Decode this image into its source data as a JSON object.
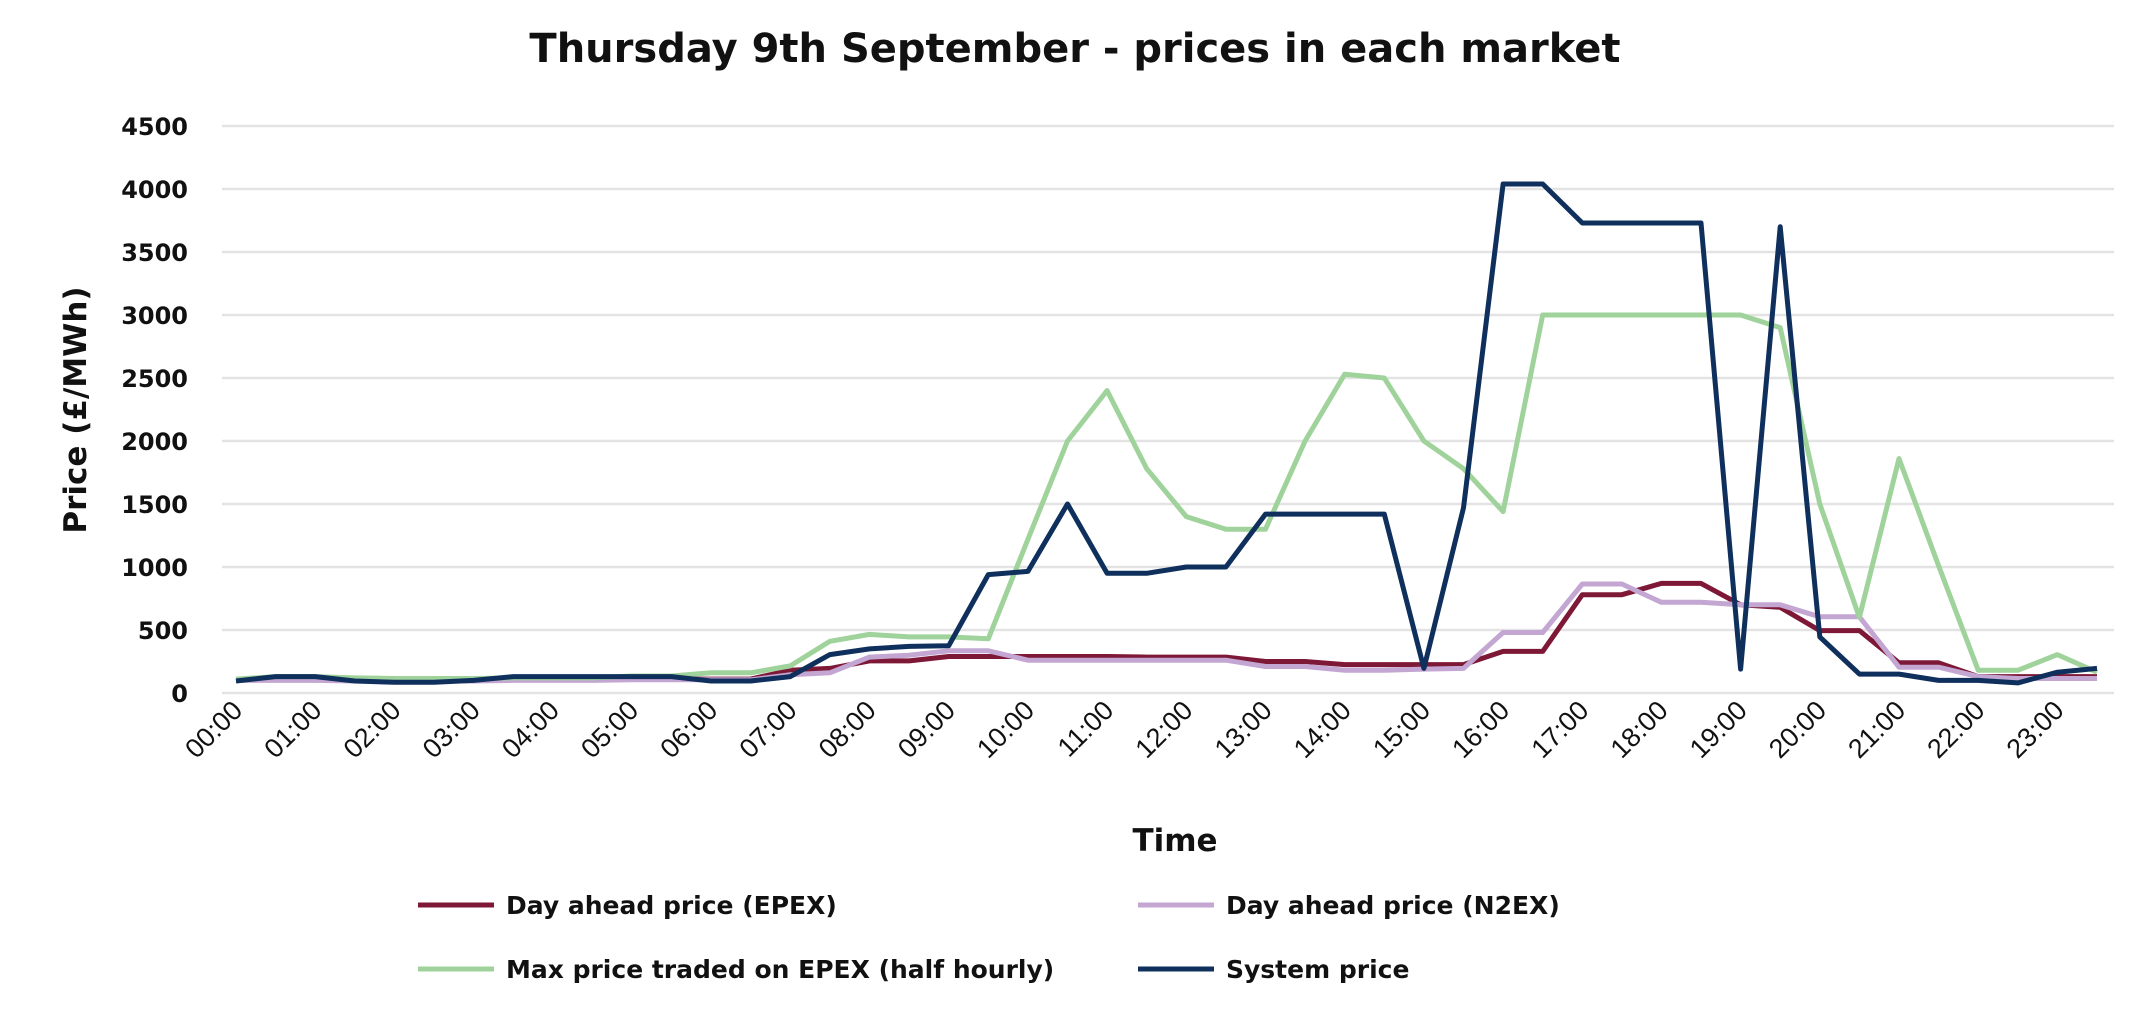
{
  "chart_data": {
    "type": "line",
    "title": "Thursday 9th September - prices in each market",
    "xlabel": "Time",
    "ylabel": "Price (£/MWh)",
    "ylim": [
      0,
      4500
    ],
    "yticks": [
      "0",
      "500",
      "1000",
      "1500",
      "2000",
      "2500",
      "3000",
      "3500",
      "4000",
      "4500"
    ],
    "xtick_labels": [
      "00:00",
      "01:00",
      "02:00",
      "03:00",
      "04:00",
      "05:00",
      "06:00",
      "07:00",
      "08:00",
      "09:00",
      "10:00",
      "11:00",
      "12:00",
      "13:00",
      "14:00",
      "15:00",
      "16:00",
      "17:00",
      "18:00",
      "19:00",
      "20:00",
      "21:00",
      "22:00",
      "23:00"
    ],
    "x": [
      "00:00",
      "00:30",
      "01:00",
      "01:30",
      "02:00",
      "02:30",
      "03:00",
      "03:30",
      "04:00",
      "04:30",
      "05:00",
      "05:30",
      "06:00",
      "06:30",
      "07:00",
      "07:30",
      "08:00",
      "08:30",
      "09:00",
      "09:30",
      "10:00",
      "10:30",
      "11:00",
      "11:30",
      "12:00",
      "12:30",
      "13:00",
      "13:30",
      "14:00",
      "14:30",
      "15:00",
      "15:30",
      "16:00",
      "16:30",
      "17:00",
      "17:30",
      "18:00",
      "18:30",
      "19:00",
      "19:30",
      "20:00",
      "20:30",
      "21:00",
      "21:30",
      "22:00",
      "22:30",
      "23:00",
      "23:30"
    ],
    "grid": true,
    "legend_position": "bottom",
    "series": [
      {
        "name": "Day ahead price (EPEX)",
        "color": "#7d1836",
        "values": [
          105,
          105,
          105,
          100,
          100,
          100,
          100,
          105,
          105,
          105,
          110,
          110,
          110,
          110,
          180,
          195,
          255,
          255,
          290,
          290,
          290,
          290,
          290,
          285,
          285,
          285,
          250,
          250,
          225,
          225,
          225,
          225,
          330,
          330,
          780,
          780,
          870,
          870,
          700,
          680,
          495,
          495,
          240,
          240,
          130,
          130,
          130,
          130
        ]
      },
      {
        "name": "Day ahead price (N2EX)",
        "color": "#c4a6d3",
        "values": [
          100,
          100,
          100,
          95,
          95,
          95,
          95,
          100,
          100,
          100,
          105,
          105,
          105,
          105,
          145,
          160,
          285,
          300,
          335,
          335,
          260,
          260,
          260,
          260,
          260,
          260,
          210,
          210,
          180,
          180,
          190,
          195,
          480,
          480,
          865,
          865,
          720,
          720,
          700,
          700,
          605,
          605,
          205,
          205,
          130,
          115,
          115,
          115
        ]
      },
      {
        "name": "Max price traded on EPEX (half hourly)",
        "color": "#9fd39b",
        "values": [
          110,
          130,
          130,
          120,
          115,
          115,
          115,
          120,
          120,
          120,
          135,
          135,
          160,
          160,
          215,
          410,
          465,
          445,
          445,
          430,
          1220,
          2000,
          2400,
          1780,
          1400,
          1300,
          1300,
          2000,
          2530,
          2500,
          2000,
          1780,
          1440,
          3000,
          3000,
          3000,
          3000,
          3000,
          3000,
          2900,
          1500,
          600,
          1860,
          1010,
          180,
          180,
          305,
          165
        ]
      },
      {
        "name": "System price",
        "color": "#0f2f5c",
        "values": [
          95,
          130,
          130,
          95,
          85,
          85,
          100,
          130,
          130,
          130,
          130,
          130,
          95,
          95,
          130,
          305,
          350,
          370,
          375,
          940,
          965,
          1500,
          950,
          950,
          1000,
          1000,
          1420,
          1420,
          1420,
          1420,
          195,
          1470,
          4040,
          4040,
          3730,
          3730,
          3730,
          3730,
          190,
          3700,
          445,
          150,
          150,
          100,
          100,
          80,
          165,
          195
        ]
      }
    ]
  }
}
